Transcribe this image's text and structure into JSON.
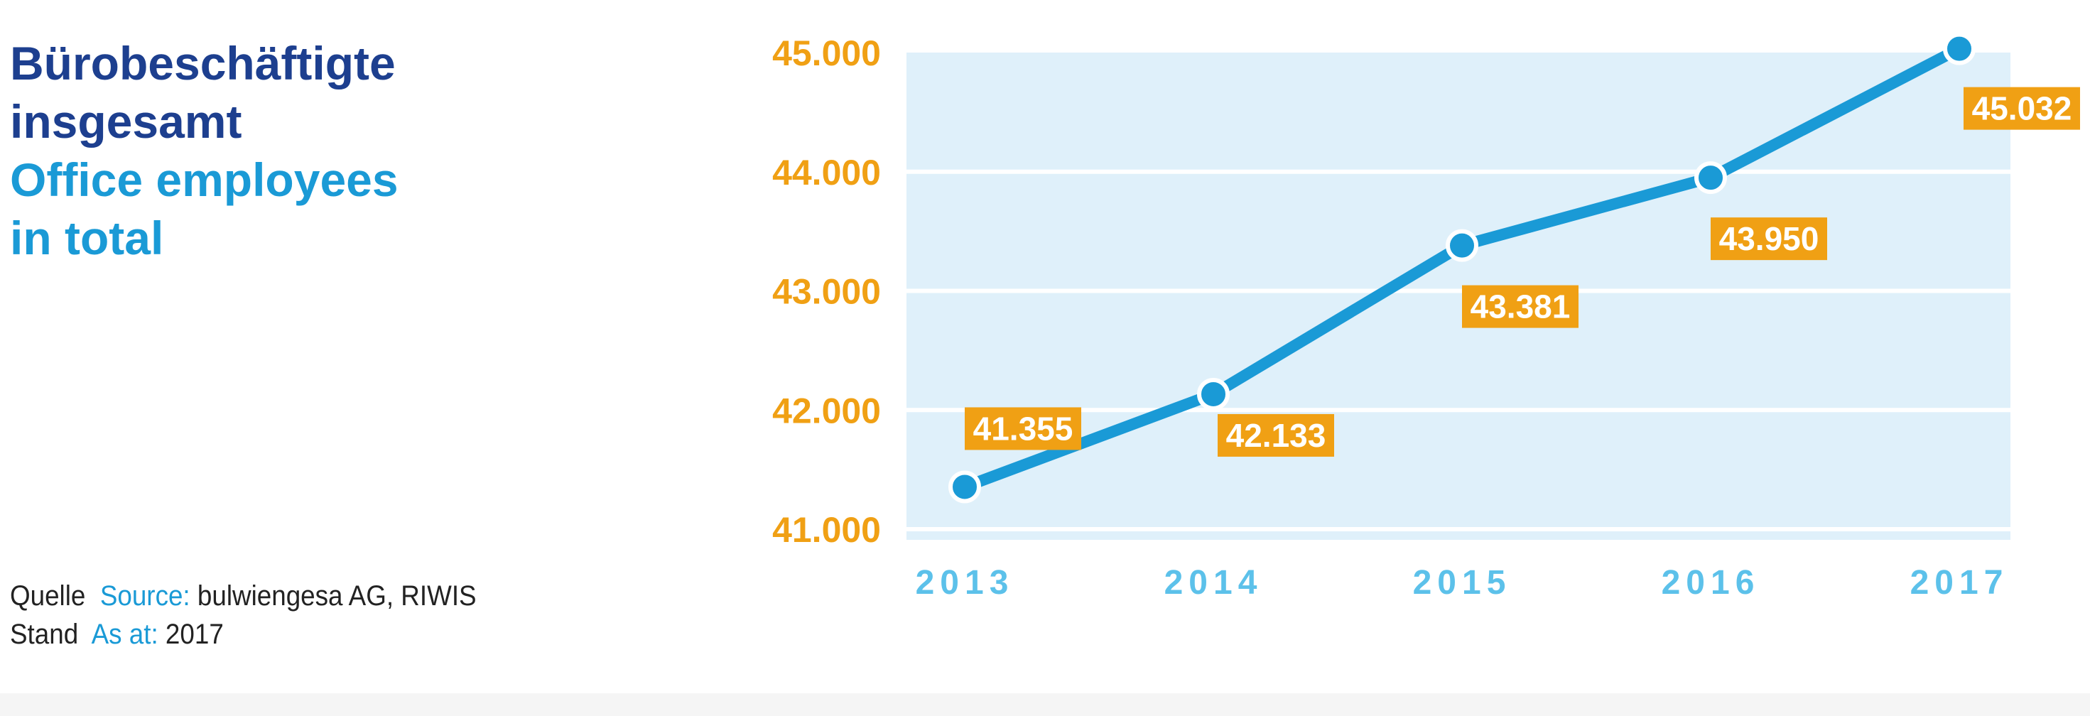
{
  "title": {
    "de_line1": "Bürobeschäftigte",
    "de_line2": "insgesamt",
    "en_line1": "Office employees",
    "en_line2": "in total"
  },
  "source": {
    "label_de": "Quelle",
    "label_en": "Source:",
    "value": "bulwiengesa AG, RIWIS",
    "asat_de": "Stand",
    "asat_en": "As at:",
    "asat_value": "2017"
  },
  "colors": {
    "line": "#1a9ad6",
    "plot_bg": "#dff0fa",
    "grid": "#ffffff",
    "y_tick": "#f0a014",
    "x_tick": "#5cc1ea",
    "label_bg": "#f0a014",
    "label_text": "#ffffff"
  },
  "chart_data": {
    "type": "line",
    "x": [
      "2013",
      "2014",
      "2015",
      "2016",
      "2017"
    ],
    "series": [
      {
        "values": [
          41355,
          42133,
          43381,
          43950,
          45032
        ]
      }
    ],
    "data_labels": [
      "41.355",
      "42.133",
      "43.381",
      "43.950",
      "45.032"
    ],
    "y_ticks": [
      41000,
      42000,
      43000,
      44000,
      45000
    ],
    "y_tick_labels": [
      "41.000",
      "42.000",
      "43.000",
      "44.000",
      "45.000"
    ],
    "ylim": [
      41000,
      45000
    ],
    "grid": true,
    "legend": "none"
  }
}
